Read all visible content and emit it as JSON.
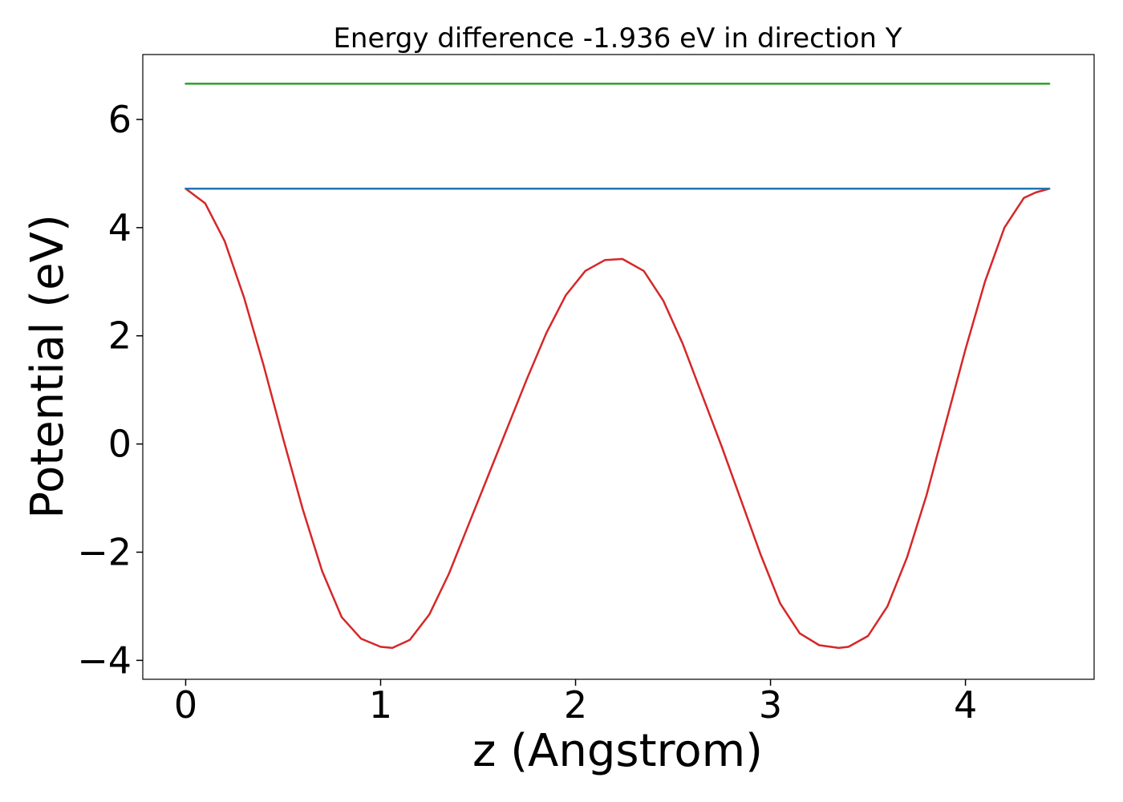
{
  "chart_data": {
    "type": "line",
    "title": "Energy difference -1.936 eV in direction Y",
    "xlabel": "z (Angstrom)",
    "ylabel": "Potential (eV)",
    "xlim": [
      -0.22,
      4.66
    ],
    "ylim": [
      -4.35,
      7.2
    ],
    "xticks": [
      0,
      1,
      2,
      3,
      4
    ],
    "xtick_labels": [
      "0",
      "1",
      "2",
      "3",
      "4"
    ],
    "yticks": [
      -4,
      -2,
      0,
      2,
      4,
      6
    ],
    "ytick_labels": [
      "−4",
      "−2",
      "0",
      "2",
      "4",
      "6"
    ],
    "grid": false,
    "series": [
      {
        "color": "#d62728",
        "x": [
          0,
          0.1,
          0.2,
          0.3,
          0.4,
          0.5,
          0.6,
          0.7,
          0.8,
          0.9,
          1.0,
          1.06,
          1.15,
          1.25,
          1.35,
          1.45,
          1.55,
          1.65,
          1.75,
          1.85,
          1.95,
          2.05,
          2.15,
          2.24,
          2.35,
          2.45,
          2.55,
          2.65,
          2.75,
          2.85,
          2.95,
          3.05,
          3.15,
          3.25,
          3.35,
          3.4,
          3.5,
          3.6,
          3.7,
          3.8,
          3.9,
          4.0,
          4.1,
          4.2,
          4.3,
          4.36,
          4.43
        ],
        "y": [
          4.72,
          4.45,
          3.75,
          2.7,
          1.45,
          0.1,
          -1.2,
          -2.35,
          -3.2,
          -3.6,
          -3.75,
          -3.77,
          -3.62,
          -3.15,
          -2.4,
          -1.5,
          -0.6,
          0.3,
          1.2,
          2.05,
          2.75,
          3.2,
          3.4,
          3.42,
          3.2,
          2.65,
          1.85,
          0.9,
          -0.05,
          -1.05,
          -2.05,
          -2.95,
          -3.5,
          -3.72,
          -3.77,
          -3.75,
          -3.55,
          -3.0,
          -2.1,
          -0.95,
          0.4,
          1.75,
          3.0,
          4.0,
          4.55,
          4.65,
          4.72
        ]
      },
      {
        "color": "#1f77b4",
        "x": [
          0,
          4.43
        ],
        "y": [
          4.72,
          4.72
        ]
      },
      {
        "color": "#2ca02c",
        "x": [
          0,
          4.43
        ],
        "y": [
          6.66,
          6.66
        ]
      }
    ]
  }
}
